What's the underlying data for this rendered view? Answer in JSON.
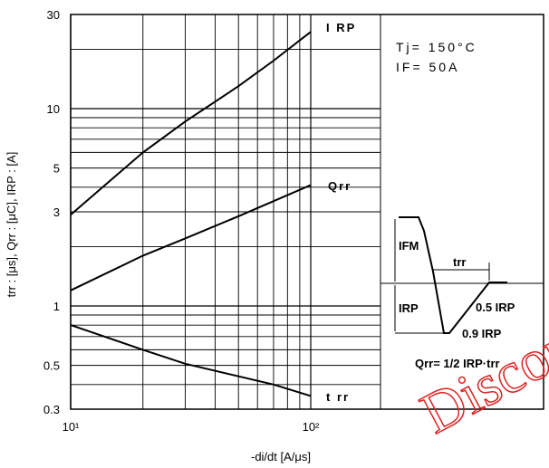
{
  "chart_data": {
    "type": "line",
    "xscale": "log",
    "yscale": "log",
    "xlim": [
      10,
      300
    ],
    "ylim": [
      0.3,
      30
    ],
    "xlabel": "-di/dt  [A/μs]",
    "ylabel": "trr : [μs],   Qrr : [μC],   IRP : [A]",
    "x_ticks": [
      {
        "value": 10,
        "label": "10¹"
      },
      {
        "value": 100,
        "label": "10²"
      }
    ],
    "y_ticks": [
      {
        "value": 30,
        "label": "30"
      },
      {
        "value": 10,
        "label": "10"
      },
      {
        "value": 5,
        "label": "5"
      },
      {
        "value": 3,
        "label": "3"
      },
      {
        "value": 1,
        "label": "1"
      },
      {
        "value": 0.5,
        "label": "0.5"
      },
      {
        "value": 0.3,
        "label": "0.3"
      }
    ],
    "grid": true,
    "conditions": [
      "Tj= 150°C",
      "IF= 50A"
    ],
    "series": [
      {
        "name": "IRP",
        "x": [
          10,
          20,
          30,
          50,
          70,
          100
        ],
        "y": [
          2.9,
          6.0,
          8.6,
          13.0,
          17.5,
          24.5
        ]
      },
      {
        "name": "Qrr",
        "x": [
          10,
          20,
          30,
          50,
          70,
          100
        ],
        "y": [
          1.2,
          1.8,
          2.2,
          2.85,
          3.4,
          4.1
        ]
      },
      {
        "name": "trr",
        "x": [
          10,
          20,
          30,
          50,
          70,
          100
        ],
        "y": [
          0.8,
          0.6,
          0.51,
          0.44,
          0.4,
          0.35
        ]
      }
    ],
    "series_labels": [
      "I RP",
      "Qrr",
      "t rr"
    ],
    "inset": {
      "labels": [
        "IFM",
        "trr",
        "IRP",
        "0.5 IRP",
        "0.9 IRP",
        "Qrr= 1/2 IRP·trr"
      ]
    },
    "watermark": [
      "Discon"
    ],
    "colors": {
      "line": "#000000",
      "grid": "#000000",
      "watermark": "#dd2222"
    }
  }
}
